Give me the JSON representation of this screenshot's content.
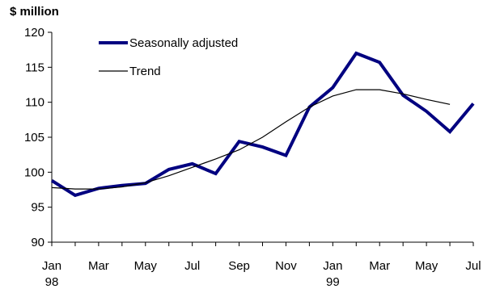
{
  "chart_data": {
    "type": "line",
    "title": "",
    "ylabel": "$ million",
    "xlabel": "",
    "ylim": [
      90,
      120
    ],
    "yticks": [
      90,
      95,
      100,
      105,
      110,
      115,
      120
    ],
    "x": [
      "Jan 98",
      "Feb 98",
      "Mar 98",
      "Apr 98",
      "May 98",
      "Jun 98",
      "Jul 98",
      "Aug 98",
      "Sep 98",
      "Oct 98",
      "Nov 98",
      "Dec 98",
      "Jan 99",
      "Feb 99",
      "Mar 99",
      "Apr 99",
      "May 99",
      "Jun 99",
      "Jul 99"
    ],
    "xtick_labels": [
      {
        "index": 0,
        "label": "Jan",
        "year": "98"
      },
      {
        "index": 2,
        "label": "Mar",
        "year": ""
      },
      {
        "index": 4,
        "label": "May",
        "year": ""
      },
      {
        "index": 6,
        "label": "Jul",
        "year": ""
      },
      {
        "index": 8,
        "label": "Sep",
        "year": ""
      },
      {
        "index": 10,
        "label": "Nov",
        "year": ""
      },
      {
        "index": 12,
        "label": "Jan",
        "year": "99"
      },
      {
        "index": 14,
        "label": "Mar",
        "year": ""
      },
      {
        "index": 16,
        "label": "May",
        "year": ""
      },
      {
        "index": 18,
        "label": "Jul",
        "year": ""
      }
    ],
    "series": [
      {
        "name": "Seasonally adjusted",
        "color": "#000080",
        "values": [
          98.8,
          96.7,
          97.7,
          98.1,
          98.4,
          100.4,
          101.2,
          99.8,
          104.4,
          103.6,
          102.4,
          109.3,
          112.1,
          117.0,
          115.7,
          111.0,
          108.7,
          105.8,
          109.8
        ]
      },
      {
        "name": "Trend",
        "color": "#000000",
        "values": [
          97.8,
          97.6,
          97.6,
          97.9,
          98.5,
          99.5,
          100.7,
          101.9,
          103.2,
          105.0,
          107.2,
          109.3,
          110.9,
          111.8,
          111.8,
          111.2,
          110.4,
          109.7,
          null
        ]
      }
    ],
    "legend_position": "top-left"
  }
}
